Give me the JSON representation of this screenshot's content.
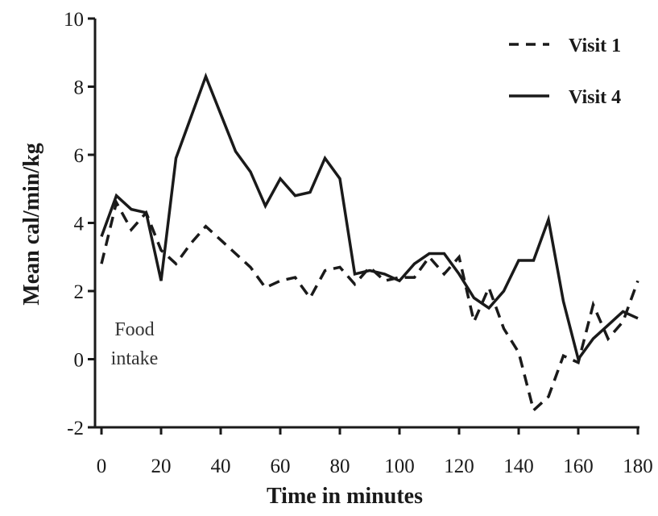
{
  "chart_data": {
    "type": "line",
    "xlabel": "Time in minutes",
    "ylabel": "Mean cal/min/kg",
    "xlim": [
      0,
      180
    ],
    "ylim": [
      -2,
      10
    ],
    "xticks": [
      "0",
      "20",
      "40",
      "60",
      "80",
      "100",
      "120",
      "140",
      "160",
      "180"
    ],
    "yticks": [
      "-2",
      "0",
      "2",
      "4",
      "6",
      "8",
      "10"
    ],
    "grid": false,
    "legend_position": "top-right",
    "annotation": {
      "line1": "Food",
      "line2": "intake"
    },
    "series": [
      {
        "name": "Visit 1",
        "style": "dashed",
        "color": "#1a1a1a",
        "x": [
          0,
          5,
          10,
          15,
          20,
          25,
          30,
          35,
          40,
          45,
          50,
          55,
          60,
          65,
          70,
          75,
          80,
          85,
          90,
          95,
          100,
          105,
          110,
          115,
          120,
          125,
          130,
          135,
          140,
          145,
          150,
          155,
          160,
          165,
          170,
          175,
          180
        ],
        "values": [
          2.8,
          4.6,
          3.8,
          4.3,
          3.2,
          2.8,
          3.4,
          3.9,
          3.5,
          3.1,
          2.7,
          2.1,
          2.3,
          2.4,
          1.8,
          2.6,
          2.7,
          2.2,
          2.7,
          2.3,
          2.4,
          2.4,
          3.0,
          2.5,
          3.0,
          1.1,
          2.1,
          0.9,
          0.2,
          -1.5,
          -1.1,
          0.1,
          -0.1,
          1.6,
          0.6,
          1.1,
          2.3
        ]
      },
      {
        "name": "Visit 4",
        "style": "solid",
        "color": "#1a1a1a",
        "x": [
          0,
          5,
          10,
          15,
          20,
          25,
          30,
          35,
          40,
          45,
          50,
          55,
          60,
          65,
          70,
          75,
          80,
          85,
          90,
          95,
          100,
          105,
          110,
          115,
          120,
          125,
          130,
          135,
          140,
          145,
          150,
          155,
          160,
          165,
          170,
          175,
          180
        ],
        "values": [
          3.6,
          4.8,
          4.4,
          4.3,
          2.3,
          5.9,
          7.1,
          8.3,
          7.2,
          6.1,
          5.5,
          4.5,
          5.3,
          4.8,
          4.9,
          5.9,
          5.3,
          2.5,
          2.6,
          2.5,
          2.3,
          2.8,
          3.1,
          3.1,
          2.5,
          1.8,
          1.5,
          2.0,
          2.9,
          2.9,
          4.1,
          1.7,
          0.0,
          0.6,
          1.0,
          1.4,
          1.2
        ]
      }
    ]
  }
}
